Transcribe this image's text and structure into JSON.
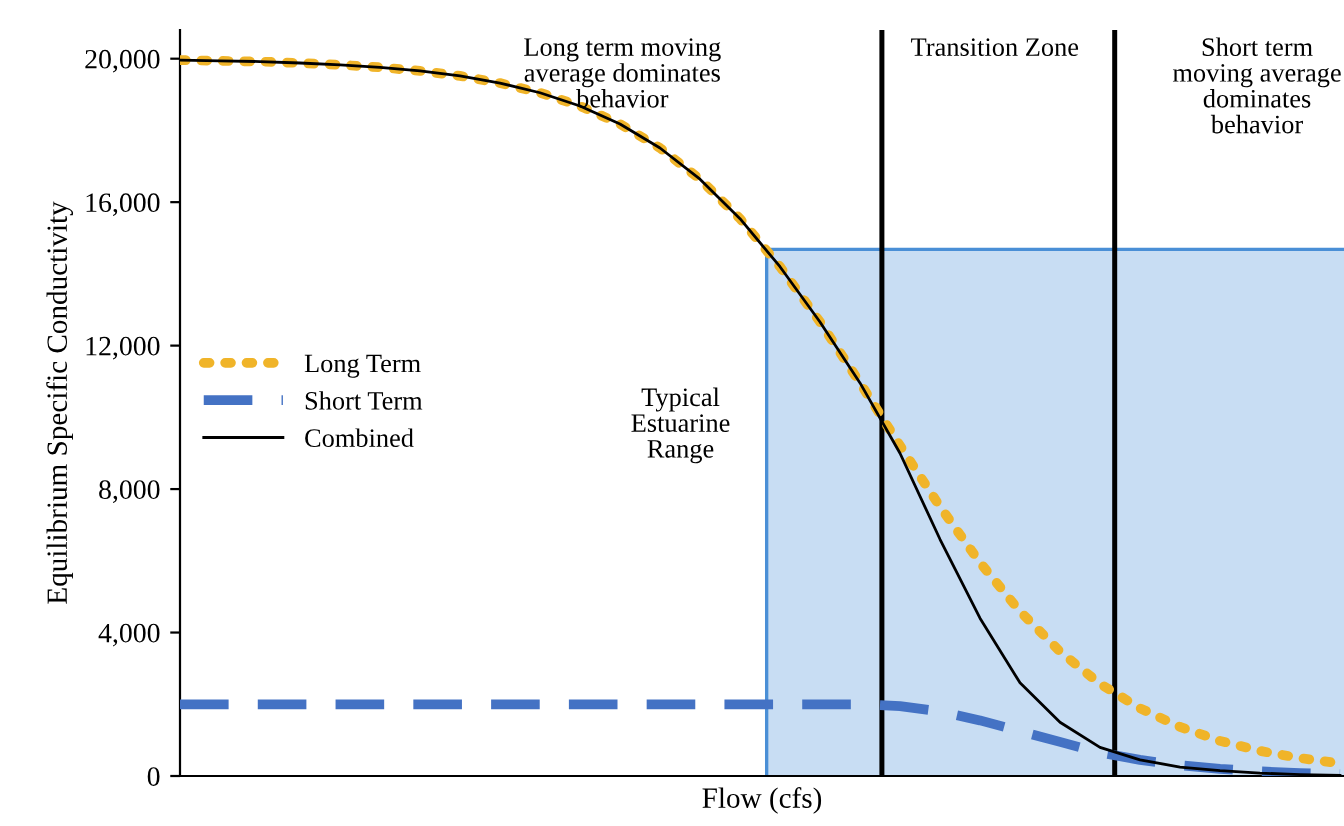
{
  "chart_data": {
    "type": "line",
    "xlabel": "Flow (cfs)",
    "ylabel": "Equilibrium Specific Conductivity",
    "categories": [
      null,
      null,
      null,
      null,
      null,
      null,
      null,
      null,
      null,
      null,
      null,
      null,
      null,
      null,
      null,
      null,
      null,
      null,
      null,
      null,
      null,
      null,
      null,
      null,
      null,
      null,
      null,
      null,
      null,
      null
    ],
    "series": [
      {
        "name": "Long Term",
        "color": "#f0b429",
        "line_style": "dotted",
        "values": [
          19960,
          19940,
          19920,
          19880,
          19830,
          19760,
          19660,
          19520,
          19320,
          19050,
          18680,
          18180,
          17510,
          16640,
          15540,
          14200,
          12660,
          10960,
          9210,
          7510,
          5950,
          4590,
          3470,
          2570,
          1890,
          1370,
          980,
          700,
          500,
          350
        ]
      },
      {
        "name": "Short Term",
        "color": "#4472c4",
        "line_style": "dashed",
        "values": [
          2000,
          2000,
          2000,
          2000,
          2000,
          2000,
          2000,
          2000,
          2000,
          2000,
          2000,
          2000,
          2000,
          2000,
          2000,
          2000,
          2000,
          2000,
          1950,
          1800,
          1550,
          1250,
          950,
          650,
          450,
          300,
          200,
          130,
          80,
          50
        ]
      },
      {
        "name": "Combined",
        "color": "#000000",
        "line_style": "solid",
        "values": [
          19960,
          19940,
          19920,
          19880,
          19830,
          19760,
          19660,
          19520,
          19320,
          19050,
          18680,
          18180,
          17510,
          16640,
          15540,
          14200,
          12660,
          10960,
          9000,
          6600,
          4400,
          2600,
          1500,
          800,
          450,
          250,
          150,
          80,
          40,
          20
        ]
      }
    ],
    "ylim": [
      0,
      20800
    ],
    "yticks": [
      0,
      {
        "value": 4000,
        "label": "4,000"
      },
      {
        "value": 8000,
        "label": "8,000"
      },
      {
        "value": 12000,
        "label": "12,000"
      },
      {
        "value": 16000,
        "label": "16,000"
      },
      {
        "value": 20000,
        "label": "20,000"
      }
    ],
    "annotations": [
      "Long term moving\naverage dominates\nbehavior",
      "Transition Zone",
      "Short term\nmoving average\ndominates\nbehavior",
      "Typical\nEstuarine\nRange"
    ],
    "legend": "center left",
    "grid": false,
    "tick_labels": "y",
    "marker": "none"
  }
}
